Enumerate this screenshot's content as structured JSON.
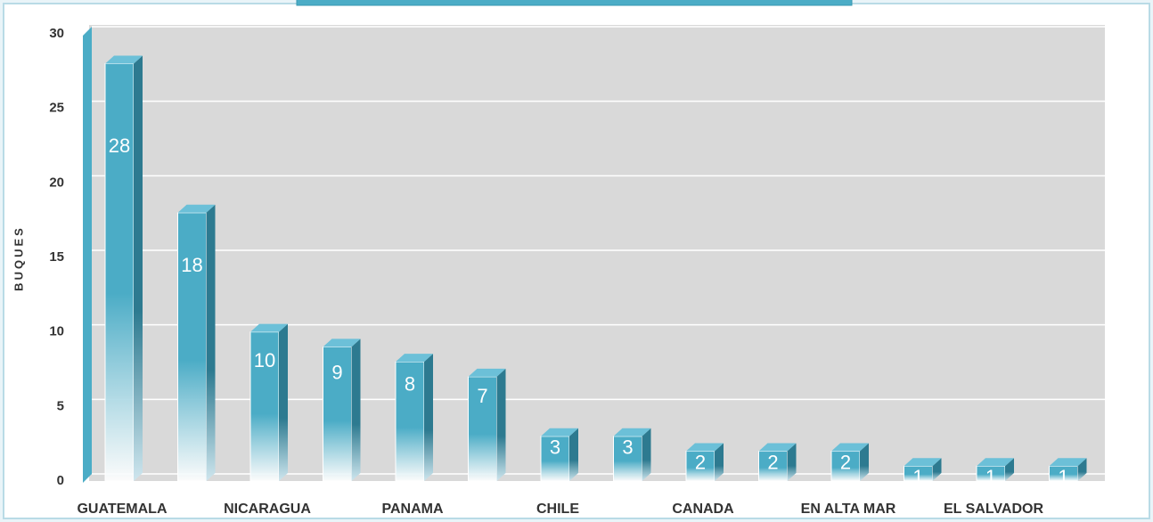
{
  "chart_data": {
    "type": "bar",
    "y_label": "BUQUES",
    "categories": [
      "GUATEMALA",
      null,
      "NICARAGUA",
      null,
      "PANAMA",
      null,
      "CHILE",
      null,
      "CANADA",
      null,
      "EN ALTA MAR",
      null,
      "EL SALVADOR",
      null
    ],
    "values": [
      28,
      18,
      10,
      9,
      8,
      7,
      3,
      3,
      2,
      2,
      2,
      1,
      1,
      1
    ],
    "color": "#4bacc6",
    "ylim": [
      0,
      30
    ],
    "yticks": [
      0,
      5,
      10,
      15,
      20,
      25,
      30
    ],
    "grid": true
  }
}
